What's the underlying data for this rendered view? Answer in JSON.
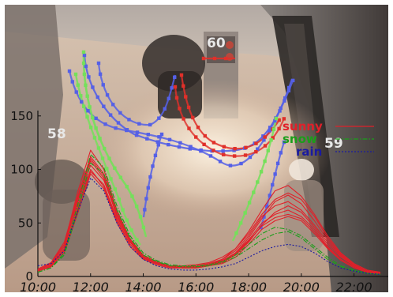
{
  "scene": {
    "person_labels": [
      {
        "id": "60",
        "color": "#e8e8e8"
      },
      {
        "id": "58",
        "color": "#e8e8e8"
      },
      {
        "id": "59",
        "color": "#e8e8e8"
      }
    ],
    "trajectory_colors": {
      "red": "#e0302a",
      "green": "#74e05a",
      "blue": "#5560e6"
    }
  },
  "chart_data": {
    "type": "line",
    "xlabel": "",
    "ylabel": "",
    "xlim": [
      10,
      23.3
    ],
    "ylim": [
      0,
      155
    ],
    "x_ticks": [
      10,
      12,
      14,
      16,
      18,
      20,
      22
    ],
    "x_tick_labels": [
      "10:00",
      "12:00",
      "14:00",
      "16:00",
      "18:00",
      "20:00",
      "22:00"
    ],
    "y_ticks": [
      0,
      50,
      100,
      150
    ],
    "y_tick_labels": [
      "0",
      "50",
      "100",
      "150"
    ],
    "legend_position": "top-right",
    "legend": [
      {
        "name": "sunny",
        "color": "#e0202a",
        "style": "solid"
      },
      {
        "name": "snow",
        "color": "#1a9e1a",
        "style": "dashdot"
      },
      {
        "name": "rain",
        "color": "#1a1aa0",
        "style": "dotted"
      }
    ],
    "x": [
      10,
      10.5,
      11,
      11.5,
      12,
      12.5,
      13,
      13.5,
      14,
      14.5,
      15,
      15.5,
      16,
      16.5,
      17,
      17.5,
      18,
      18.5,
      19,
      19.5,
      20,
      20.5,
      21,
      21.5,
      22,
      22.5,
      23
    ],
    "series": [
      {
        "group": "sunny",
        "values": [
          6,
          12,
          30,
          78,
          118,
          100,
          62,
          35,
          20,
          14,
          10,
          9,
          9,
          11,
          16,
          26,
          42,
          62,
          80,
          85,
          75,
          58,
          38,
          22,
          12,
          6,
          4
        ]
      },
      {
        "group": "sunny",
        "values": [
          5,
          10,
          26,
          70,
          108,
          92,
          56,
          32,
          18,
          12,
          9,
          8,
          9,
          10,
          14,
          22,
          36,
          54,
          70,
          76,
          68,
          52,
          34,
          20,
          11,
          5,
          3
        ]
      },
      {
        "group": "sunny",
        "values": [
          7,
          13,
          32,
          74,
          112,
          96,
          60,
          34,
          19,
          13,
          10,
          9,
          10,
          12,
          16,
          24,
          38,
          56,
          66,
          70,
          62,
          48,
          32,
          19,
          10,
          5,
          3
        ]
      },
      {
        "group": "sunny",
        "values": [
          5,
          10,
          24,
          64,
          100,
          84,
          52,
          30,
          17,
          12,
          9,
          8,
          8,
          10,
          13,
          20,
          32,
          48,
          60,
          66,
          60,
          46,
          30,
          18,
          10,
          5,
          3
        ]
      },
      {
        "group": "sunny",
        "values": [
          6,
          11,
          28,
          68,
          104,
          90,
          58,
          32,
          18,
          13,
          10,
          9,
          9,
          11,
          15,
          22,
          34,
          50,
          58,
          62,
          56,
          44,
          28,
          16,
          9,
          4,
          3
        ]
      },
      {
        "group": "sunny",
        "values": [
          5,
          9,
          22,
          58,
          96,
          82,
          50,
          28,
          16,
          11,
          8,
          8,
          8,
          10,
          12,
          18,
          30,
          44,
          52,
          56,
          52,
          40,
          26,
          15,
          8,
          4,
          2
        ]
      },
      {
        "group": "sunny",
        "values": [
          6,
          12,
          30,
          72,
          110,
          94,
          58,
          33,
          19,
          13,
          10,
          10,
          11,
          13,
          18,
          26,
          40,
          58,
          72,
          78,
          72,
          56,
          36,
          21,
          11,
          5,
          3
        ]
      },
      {
        "group": "sunny",
        "values": [
          5,
          10,
          25,
          62,
          98,
          86,
          54,
          30,
          17,
          12,
          9,
          9,
          9,
          11,
          14,
          21,
          33,
          47,
          55,
          58,
          54,
          42,
          27,
          16,
          9,
          4,
          2
        ]
      },
      {
        "group": "snow",
        "values": [
          4,
          8,
          22,
          66,
          114,
          102,
          66,
          38,
          22,
          15,
          11,
          10,
          10,
          11,
          14,
          20,
          30,
          40,
          46,
          44,
          38,
          28,
          18,
          10,
          6,
          3,
          2
        ]
      },
      {
        "group": "snow",
        "values": [
          4,
          8,
          20,
          60,
          106,
          96,
          62,
          36,
          20,
          14,
          10,
          9,
          9,
          10,
          13,
          18,
          26,
          34,
          40,
          42,
          36,
          26,
          16,
          9,
          5,
          3,
          2
        ]
      },
      {
        "group": "rain",
        "values": [
          10,
          12,
          24,
          60,
          92,
          80,
          50,
          28,
          16,
          10,
          7,
          6,
          6,
          7,
          9,
          12,
          18,
          24,
          28,
          30,
          28,
          22,
          14,
          8,
          5,
          3,
          2
        ]
      }
    ]
  }
}
